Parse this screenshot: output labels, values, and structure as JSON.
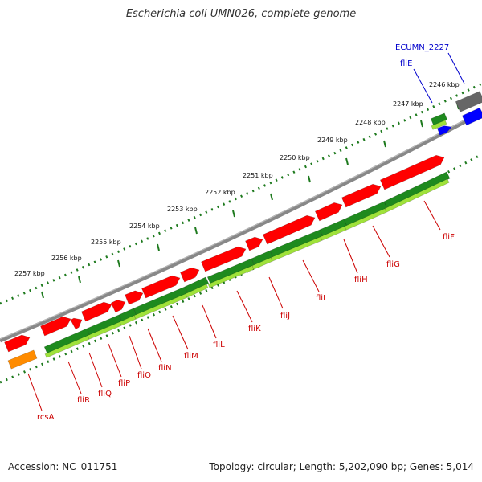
{
  "title": "Escherichia coli UMN026, complete genome",
  "footer": {
    "accession": "Accession: NC_011751",
    "summary": "Topology: circular; Length: 5,202,090 bp; Genes: 5,014"
  },
  "colors": {
    "forward_gene": "#ff0000",
    "reverse_gene_dark": "#1e8a1e",
    "reverse_gene_light": "#9fe23a",
    "misc_orange": "#ff8c00",
    "blue_feature": "#0000ff",
    "gray_feature": "#666666",
    "backbone": "#777777",
    "tick": "#1e7a1e",
    "label_red": "#cc0000",
    "label_blue": "#0000cc"
  },
  "ticks": [
    {
      "label": "2246 kbp"
    },
    {
      "label": "2247 kbp"
    },
    {
      "label": "2248 kbp"
    },
    {
      "label": "2249 kbp"
    },
    {
      "label": "2250 kbp"
    },
    {
      "label": "2251 kbp"
    },
    {
      "label": "2252 kbp"
    },
    {
      "label": "2253 kbp"
    },
    {
      "label": "2254 kbp"
    },
    {
      "label": "2255 kbp"
    },
    {
      "label": "2256 kbp"
    },
    {
      "label": "2257 kbp"
    }
  ],
  "gene_labels": [
    {
      "name": "ECUMN_2227",
      "color": "blue"
    },
    {
      "name": "fliE",
      "color": "blue"
    },
    {
      "name": "fliF",
      "color": "red"
    },
    {
      "name": "fliG",
      "color": "red"
    },
    {
      "name": "fliH",
      "color": "red"
    },
    {
      "name": "fliI",
      "color": "red"
    },
    {
      "name": "fliJ",
      "color": "red"
    },
    {
      "name": "fliK",
      "color": "red"
    },
    {
      "name": "fliL",
      "color": "red"
    },
    {
      "name": "fliM",
      "color": "red"
    },
    {
      "name": "fliN",
      "color": "red"
    },
    {
      "name": "fliO",
      "color": "red"
    },
    {
      "name": "fliP",
      "color": "red"
    },
    {
      "name": "fliQ",
      "color": "red"
    },
    {
      "name": "fliR",
      "color": "red"
    },
    {
      "name": "rcsA",
      "color": "red"
    }
  ]
}
